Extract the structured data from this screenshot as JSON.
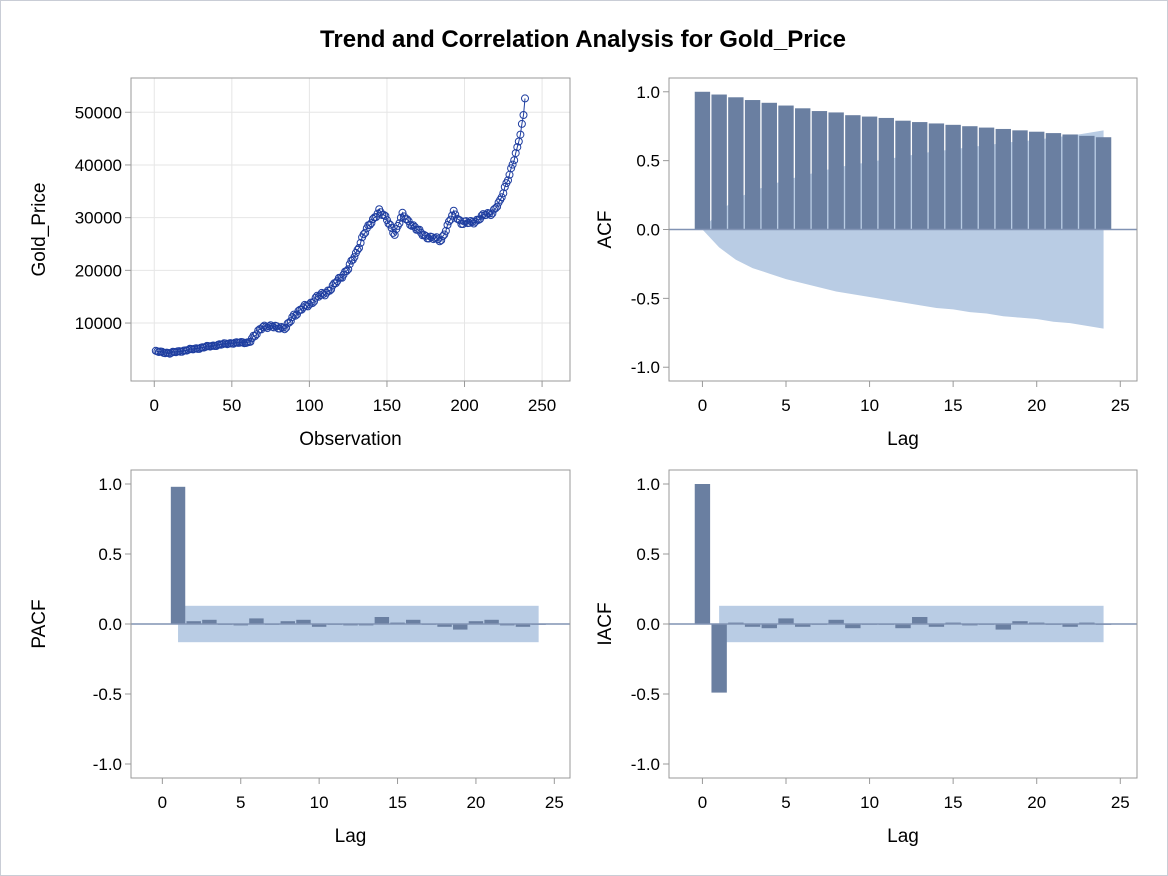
{
  "title": "Trend and Correlation Analysis for Gold_Price",
  "colors": {
    "bar": "#6a7fa1",
    "band": "#b9cce4",
    "line": "#1f3ea0",
    "grid": "#e6e6e6",
    "axis": "#999999",
    "zero": "#8193b4"
  },
  "chart_data": [
    {
      "type": "line",
      "name_id": "trend",
      "xlabel": "Observation",
      "ylabel": "Gold_Price",
      "xlim": [
        -15,
        268
      ],
      "ylim": [
        -1000,
        56500
      ],
      "xticks": [
        0,
        50,
        100,
        150,
        200,
        250
      ],
      "yticks": [
        10000,
        20000,
        30000,
        40000,
        50000
      ],
      "grid": true,
      "marker": "open-circle",
      "anchors": [
        [
          1,
          4600
        ],
        [
          10,
          4300
        ],
        [
          20,
          4800
        ],
        [
          30,
          5300
        ],
        [
          40,
          5800
        ],
        [
          50,
          6200
        ],
        [
          60,
          6300
        ],
        [
          65,
          7500
        ],
        [
          70,
          9500
        ],
        [
          75,
          9200
        ],
        [
          80,
          9300
        ],
        [
          85,
          9000
        ],
        [
          90,
          11500
        ],
        [
          95,
          12700
        ],
        [
          100,
          13500
        ],
        [
          105,
          15000
        ],
        [
          110,
          15500
        ],
        [
          115,
          17000
        ],
        [
          120,
          18500
        ],
        [
          125,
          20500
        ],
        [
          130,
          23000
        ],
        [
          135,
          27000
        ],
        [
          140,
          29000
        ],
        [
          145,
          31500
        ],
        [
          150,
          29500
        ],
        [
          155,
          27000
        ],
        [
          160,
          30500
        ],
        [
          165,
          29000
        ],
        [
          170,
          27500
        ],
        [
          175,
          26500
        ],
        [
          180,
          26000
        ],
        [
          185,
          25800
        ],
        [
          190,
          29000
        ],
        [
          193,
          31000
        ],
        [
          198,
          29000
        ],
        [
          203,
          29000
        ],
        [
          208,
          29500
        ],
        [
          213,
          30500
        ],
        [
          218,
          31000
        ],
        [
          223,
          33000
        ],
        [
          228,
          37500
        ],
        [
          231,
          40000
        ],
        [
          234,
          43000
        ],
        [
          236,
          46000
        ],
        [
          238,
          49500
        ],
        [
          239,
          53000
        ]
      ]
    },
    {
      "type": "bar",
      "name_id": "acf",
      "xlabel": "Lag",
      "ylabel": "ACF",
      "xlim": [
        -2,
        26
      ],
      "ylim": [
        -1.1,
        1.1
      ],
      "xticks": [
        0,
        5,
        10,
        15,
        20,
        25
      ],
      "yticks": [
        "-1.0",
        "-0.5",
        "0.0",
        "0.5",
        "1.0"
      ],
      "lags": [
        0,
        1,
        2,
        3,
        4,
        5,
        6,
        7,
        8,
        9,
        10,
        11,
        12,
        13,
        14,
        15,
        16,
        17,
        18,
        19,
        20,
        21,
        22,
        23,
        24
      ],
      "values": [
        1.0,
        0.98,
        0.96,
        0.94,
        0.92,
        0.9,
        0.88,
        0.86,
        0.85,
        0.83,
        0.82,
        0.81,
        0.79,
        0.78,
        0.77,
        0.76,
        0.75,
        0.74,
        0.73,
        0.72,
        0.71,
        0.7,
        0.69,
        0.68,
        0.67
      ],
      "band": [
        0,
        0.13,
        0.22,
        0.28,
        0.32,
        0.36,
        0.39,
        0.42,
        0.45,
        0.47,
        0.49,
        0.51,
        0.53,
        0.55,
        0.57,
        0.58,
        0.6,
        0.61,
        0.63,
        0.64,
        0.65,
        0.67,
        0.68,
        0.7,
        0.72
      ]
    },
    {
      "type": "bar",
      "name_id": "pacf",
      "xlabel": "Lag",
      "ylabel": "PACF",
      "xlim": [
        -2,
        26
      ],
      "ylim": [
        -1.1,
        1.1
      ],
      "xticks": [
        0,
        5,
        10,
        15,
        20,
        25
      ],
      "yticks": [
        "-1.0",
        "-0.5",
        "0.0",
        "0.5",
        "1.0"
      ],
      "lags": [
        1,
        2,
        3,
        4,
        5,
        6,
        7,
        8,
        9,
        10,
        11,
        12,
        13,
        14,
        15,
        16,
        17,
        18,
        19,
        20,
        21,
        22,
        23,
        24
      ],
      "values": [
        0.98,
        0.02,
        0.03,
        0.0,
        -0.01,
        0.04,
        0.0,
        0.02,
        0.03,
        -0.02,
        0.0,
        -0.01,
        -0.01,
        0.05,
        0.01,
        0.03,
        0.0,
        -0.02,
        -0.04,
        0.02,
        0.03,
        -0.01,
        -0.02,
        0.0
      ],
      "band_x": [
        1,
        24
      ],
      "band": 0.13
    },
    {
      "type": "bar",
      "name_id": "iacf",
      "xlabel": "Lag",
      "ylabel": "IACF",
      "xlim": [
        -2,
        26
      ],
      "ylim": [
        -1.1,
        1.1
      ],
      "xticks": [
        0,
        5,
        10,
        15,
        20,
        25
      ],
      "yticks": [
        "-1.0",
        "-0.5",
        "0.0",
        "0.5",
        "1.0"
      ],
      "lags": [
        0,
        1,
        2,
        3,
        4,
        5,
        6,
        7,
        8,
        9,
        10,
        11,
        12,
        13,
        14,
        15,
        16,
        17,
        18,
        19,
        20,
        21,
        22,
        23,
        24
      ],
      "values": [
        1.0,
        -0.49,
        0.01,
        -0.02,
        -0.03,
        0.04,
        -0.02,
        0.0,
        0.03,
        -0.03,
        0.0,
        0.0,
        -0.03,
        0.05,
        -0.02,
        0.01,
        -0.01,
        0.0,
        -0.04,
        0.02,
        0.01,
        0.0,
        -0.02,
        0.01,
        0.0
      ],
      "band_x": [
        1,
        24
      ],
      "band": 0.13
    }
  ]
}
